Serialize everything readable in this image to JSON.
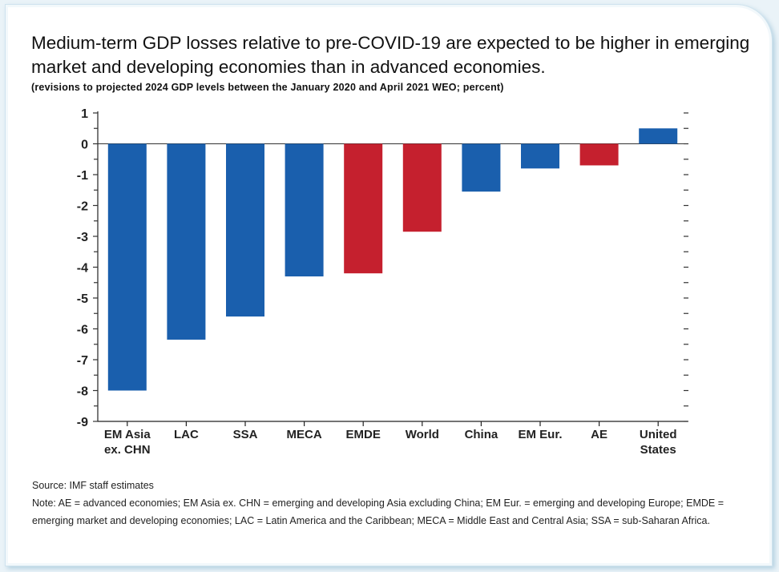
{
  "title": "Medium-term GDP losses relative to pre-COVID-19 are expected to be higher in emerging market and developing economies than in advanced economies.",
  "subtitle": "(revisions to projected 2024 GDP levels between the January 2020 and April 2021 WEO; percent)",
  "source": "Source: IMF staff estimates",
  "note": "Note: AE = advanced economies; EM Asia ex. CHN = emerging and developing Asia excluding China; EM Eur. = emerging and developing Europe; EMDE = emerging market and developing economies; LAC = Latin America and the Caribbean; MECA = Middle East and Central Asia; SSA = sub-Saharan Africa.",
  "colors": {
    "blue": "#1a5fad",
    "red": "#c5202e"
  },
  "chart_data": {
    "type": "bar",
    "title": "",
    "xlabel": "",
    "ylabel": "",
    "ylim": [
      -9,
      1
    ],
    "yticks": [
      "1",
      "0",
      "-1",
      "-2",
      "-3",
      "-4",
      "-5",
      "-6",
      "-7",
      "-8",
      "-9"
    ],
    "grid": false,
    "categories": [
      [
        "EM Asia",
        "ex. CHN"
      ],
      [
        "LAC"
      ],
      [
        "SSA"
      ],
      [
        "MECA"
      ],
      [
        "EMDE"
      ],
      [
        "World"
      ],
      [
        "China"
      ],
      [
        "EM Eur."
      ],
      [
        "AE"
      ],
      [
        "United",
        "States"
      ]
    ],
    "values": [
      -8.0,
      -6.35,
      -5.6,
      -4.3,
      -4.2,
      -2.85,
      -1.55,
      -0.8,
      -0.7,
      0.5
    ],
    "bar_colors": [
      "blue",
      "blue",
      "blue",
      "blue",
      "red",
      "red",
      "blue",
      "blue",
      "red",
      "blue"
    ]
  }
}
